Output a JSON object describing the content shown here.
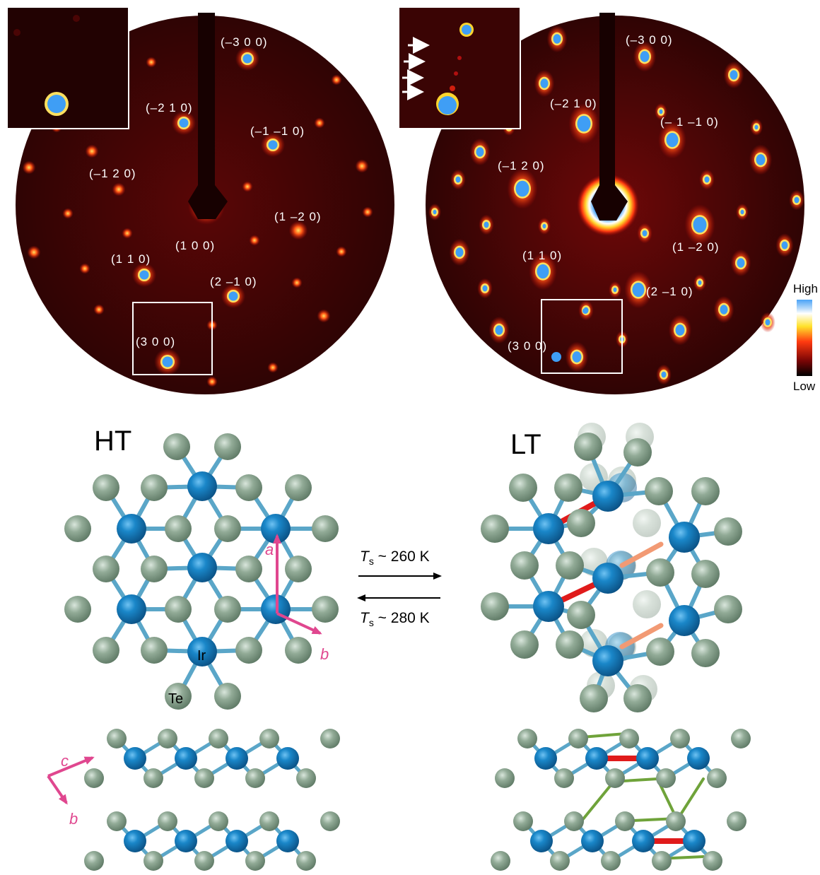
{
  "leed_ht": {
    "labels": [
      "(–3 0 0)",
      "(–2 1 0)",
      "(–1 –1 0)",
      "(–1 2 0)",
      "(1 –2 0)",
      "(1 0 0)",
      "(1 1 0)",
      "(2 –1 0)",
      "(3 0 0)"
    ]
  },
  "leed_lt": {
    "labels": [
      "(–3 0 0)",
      "(–2 1 0)",
      "(– 1 –1 0)",
      "(–1 2 0)",
      "(1 –2 0)",
      "(1 1 0)",
      "(2 –1 0)",
      "(3 0 0)"
    ]
  },
  "colorbar": {
    "high": "High",
    "low": "Low"
  },
  "phases": {
    "ht": "HT",
    "lt": "LT"
  },
  "transition": {
    "upper_sym": "T",
    "upper_sub": "s",
    "upper_val": " ~ 260 K",
    "lower_sym": "T",
    "lower_sub": "s",
    "lower_val": " ~ 280 K"
  },
  "axes": {
    "a": "a",
    "b": "b",
    "c": "c",
    "b2": "b"
  },
  "atoms": {
    "ir": "Ir",
    "te": "Te"
  },
  "colors": {
    "ir": "#1a87c9",
    "te": "#92ab97",
    "dimer_ir": "#e01b1b",
    "dimer_ir_back": "#f29a74",
    "te_bond": "#6fa33a",
    "axis": "#e0478f",
    "leed_bg": "#3d0505",
    "spot": "#ff3318",
    "spot_hot": "#3f9ef5"
  }
}
